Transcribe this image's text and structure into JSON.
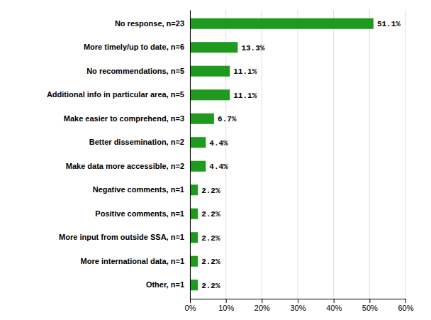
{
  "chart_data": {
    "type": "bar",
    "orientation": "horizontal",
    "categories": [
      "No response, n=23",
      "More timely/up to date, n=6",
      "No recommendations, n=5",
      "Additional info in particular area, n=5",
      "Make easier to comprehend, n=3",
      "Better dissemination, n=2",
      "Make data more accessible, n=2",
      "Negative comments, n=1",
      "Positive comments, n=1",
      "More input from outside SSA, n=1",
      "More international data, n=1",
      "Other, n=1"
    ],
    "values": [
      51.1,
      13.3,
      11.1,
      11.1,
      6.7,
      4.4,
      4.4,
      2.2,
      2.2,
      2.2,
      2.2,
      2.2
    ],
    "value_labels": [
      "51.1%",
      "13.3%",
      "11.1%",
      "11.1%",
      "6.7%",
      "4.4%",
      "4.4%",
      "2.2%",
      "2.2%",
      "2.2%",
      "2.2%",
      "2.2%"
    ],
    "data_labels": true,
    "color": "#1f9a1f",
    "xlim": [
      0,
      60
    ],
    "xticks": [
      {
        "value": 0,
        "label": "0%"
      },
      {
        "value": 10,
        "label": "10%"
      },
      {
        "value": 20,
        "label": "20%"
      },
      {
        "value": 30,
        "label": "30%"
      },
      {
        "value": 40,
        "label": "40%"
      },
      {
        "value": 50,
        "label": "50%"
      },
      {
        "value": 60,
        "label": "60%"
      }
    ],
    "grid": true
  }
}
